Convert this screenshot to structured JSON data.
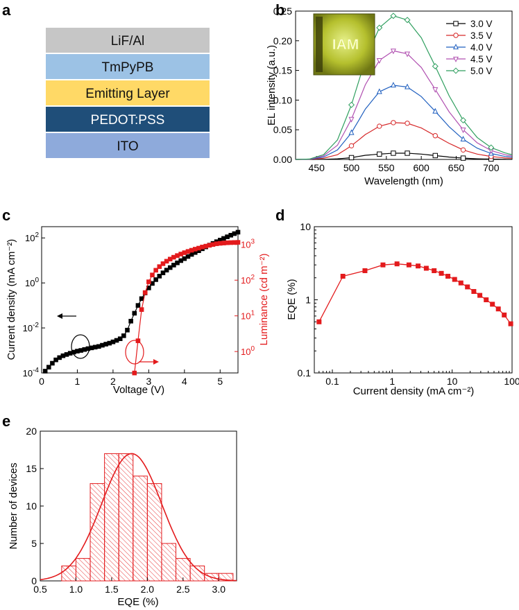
{
  "panel_labels": {
    "a": "a",
    "b": "b",
    "c": "c",
    "d": "d",
    "e": "e"
  },
  "device_stack": {
    "layers": [
      {
        "label": "LiF/Al",
        "color": "#c6c6c6",
        "text_color": "#111111"
      },
      {
        "label": "TmPyPB",
        "color": "#9cc2e5",
        "text_color": "#111111"
      },
      {
        "label": "Emitting Layer",
        "color": "#ffd966",
        "text_color": "#111111"
      },
      {
        "label": "PEDOT:PSS",
        "color": "#1f4e79",
        "text_color": "#ffffff"
      },
      {
        "label": "ITO",
        "color": "#8eaadb",
        "text_color": "#111111"
      }
    ]
  },
  "inset_photo": {
    "text": "IAM"
  },
  "chart_data": [
    {
      "id": "b",
      "type": "line",
      "xlabel": "Wavelength (nm)",
      "ylabel": "EL intensity (a.u.)",
      "xlim": [
        420,
        730
      ],
      "ylim": [
        0,
        0.25
      ],
      "xticks": [
        450,
        500,
        550,
        600,
        650,
        700
      ],
      "yticks": [
        0.0,
        0.05,
        0.1,
        0.15,
        0.2,
        0.25
      ],
      "ytick_labels": [
        "0.00",
        "0.05",
        "0.10",
        "0.15",
        "0.20",
        "0.25"
      ],
      "legend_position": "top-right",
      "x": [
        420,
        440,
        460,
        480,
        500,
        520,
        540,
        560,
        580,
        600,
        620,
        640,
        660,
        680,
        700,
        720,
        730
      ],
      "series": [
        {
          "name": "3.0 V",
          "color": "#000000",
          "marker": "square",
          "values": [
            0.0,
            0.0,
            0.0002,
            0.001,
            0.003,
            0.007,
            0.009,
            0.0105,
            0.0105,
            0.009,
            0.0065,
            0.004,
            0.0022,
            0.001,
            0.0006,
            0.0003,
            0.0002
          ]
        },
        {
          "name": "3.5 V",
          "color": "#d62728",
          "marker": "circle",
          "values": [
            0.0,
            0.0002,
            0.002,
            0.008,
            0.023,
            0.042,
            0.056,
            0.062,
            0.061,
            0.053,
            0.04,
            0.027,
            0.016,
            0.009,
            0.005,
            0.0025,
            0.002
          ]
        },
        {
          "name": "4.0 V",
          "color": "#1f5fbf",
          "marker": "triangle-up",
          "values": [
            0.0,
            0.0003,
            0.004,
            0.016,
            0.045,
            0.085,
            0.114,
            0.125,
            0.122,
            0.106,
            0.081,
            0.055,
            0.034,
            0.019,
            0.01,
            0.005,
            0.004
          ]
        },
        {
          "name": "4.5 V",
          "color": "#b04fb0",
          "marker": "triangle-down",
          "values": [
            0.0,
            0.0005,
            0.006,
            0.024,
            0.068,
            0.126,
            0.167,
            0.183,
            0.178,
            0.155,
            0.118,
            0.08,
            0.05,
            0.028,
            0.015,
            0.008,
            0.006
          ]
        },
        {
          "name": "5.0 V",
          "color": "#2e9e5e",
          "marker": "diamond",
          "values": [
            0.0,
            0.0007,
            0.008,
            0.033,
            0.092,
            0.168,
            0.222,
            0.242,
            0.235,
            0.205,
            0.157,
            0.107,
            0.066,
            0.037,
            0.02,
            0.011,
            0.008
          ]
        }
      ]
    },
    {
      "id": "c",
      "type": "line",
      "xlabel": "Voltage (V)",
      "ylabel": "Current density (mA cm⁻²)",
      "y2label": "Luminance (cd m⁻²)",
      "xlim": [
        0,
        5.5
      ],
      "ylim_log": [
        -4,
        2.5
      ],
      "y2lim_log": [
        -0.6,
        3.5
      ],
      "xticks": [
        0,
        1,
        2,
        3,
        4,
        5
      ],
      "yticks_log": [
        -4,
        -2,
        0,
        2
      ],
      "ytick_labels": [
        "10⁻⁴",
        "10⁻²",
        "10⁰",
        "10²"
      ],
      "y2ticks_log": [
        0,
        1,
        2,
        3
      ],
      "y2tick_labels": [
        "10⁰",
        "10¹",
        "10²",
        "10³"
      ],
      "series": [
        {
          "name": "Current density",
          "axis": "left",
          "color": "#000000",
          "marker": "square",
          "x": [
            0.1,
            0.2,
            0.3,
            0.4,
            0.5,
            0.6,
            0.7,
            0.8,
            0.9,
            1.0,
            1.1,
            1.2,
            1.3,
            1.4,
            1.5,
            1.6,
            1.7,
            1.8,
            1.9,
            2.0,
            2.1,
            2.2,
            2.3,
            2.4,
            2.5,
            2.6,
            2.7,
            2.8,
            2.9,
            3.0,
            3.1,
            3.2,
            3.3,
            3.4,
            3.5,
            3.6,
            3.7,
            3.8,
            3.9,
            4.0,
            4.1,
            4.2,
            4.3,
            4.4,
            4.5,
            4.6,
            4.7,
            4.8,
            4.9,
            5.0,
            5.1,
            5.2,
            5.3,
            5.4,
            5.5
          ],
          "values": [
            0.00012,
            0.00018,
            0.00027,
            0.00038,
            0.00048,
            0.00058,
            0.00066,
            0.00075,
            0.00084,
            0.00093,
            0.001,
            0.0011,
            0.0012,
            0.0013,
            0.0014,
            0.0015,
            0.0017,
            0.0019,
            0.0021,
            0.0024,
            0.0028,
            0.0033,
            0.0045,
            0.008,
            0.02,
            0.045,
            0.1,
            0.2,
            0.36,
            0.6,
            0.95,
            1.4,
            2.0,
            2.8,
            3.7,
            4.8,
            6.2,
            7.8,
            9.8,
            12,
            15,
            18.5,
            22.5,
            27,
            33,
            40,
            48,
            57,
            68,
            80,
            95,
            112,
            132,
            155,
            180
          ]
        },
        {
          "name": "Luminance",
          "axis": "right",
          "color": "#e31a1c",
          "marker": "square",
          "x": [
            2.6,
            2.7,
            2.8,
            2.9,
            3.0,
            3.1,
            3.2,
            3.3,
            3.4,
            3.5,
            3.6,
            3.7,
            3.8,
            3.9,
            4.0,
            4.1,
            4.2,
            4.3,
            4.4,
            4.5,
            4.6,
            4.7,
            4.8,
            4.9,
            5.0,
            5.1,
            5.2,
            5.3,
            5.4,
            5.5
          ],
          "values": [
            0.25,
            2,
            15,
            45,
            90,
            140,
            190,
            240,
            290,
            340,
            390,
            440,
            490,
            540,
            590,
            640,
            690,
            740,
            790,
            850,
            900,
            950,
            1000,
            1050,
            1080,
            1100,
            1120,
            1130,
            1140,
            1150
          ]
        }
      ]
    },
    {
      "id": "d",
      "type": "line",
      "xlabel": "Current density (mA cm⁻²)",
      "ylabel": "EQE (%)",
      "x_scale": "log",
      "y_scale": "log",
      "xlim": [
        0.05,
        100
      ],
      "ylim": [
        0.1,
        10
      ],
      "xticks": [
        0.1,
        1,
        10,
        100
      ],
      "xtick_labels": [
        "0.1",
        "1",
        "10",
        "100"
      ],
      "yticks": [
        0.1,
        1,
        10
      ],
      "ytick_labels": [
        "0.1",
        "1",
        "10"
      ],
      "series": [
        {
          "name": "EQE",
          "color": "#e31a1c",
          "marker": "square",
          "x": [
            0.06,
            0.15,
            0.35,
            0.7,
            1.2,
            1.9,
            2.7,
            3.7,
            5.0,
            6.6,
            8.5,
            11,
            14,
            18,
            23,
            29,
            37,
            47,
            59,
            74,
            95
          ],
          "values": [
            0.5,
            2.1,
            2.5,
            3.0,
            3.1,
            3.0,
            2.9,
            2.7,
            2.5,
            2.3,
            2.1,
            1.9,
            1.7,
            1.5,
            1.3,
            1.15,
            1.0,
            0.87,
            0.75,
            0.62,
            0.47
          ]
        }
      ]
    },
    {
      "id": "e",
      "type": "bar",
      "xlabel": "EQE (%)",
      "ylabel": "Number of devices",
      "xlim": [
        0.5,
        3.25
      ],
      "ylim": [
        0,
        20
      ],
      "xticks": [
        0.5,
        1.0,
        1.5,
        2.0,
        2.5,
        3.0
      ],
      "xtick_labels": [
        "0.5",
        "1.0",
        "1.5",
        "2.0",
        "2.5",
        "3.0"
      ],
      "yticks": [
        0,
        5,
        10,
        15,
        20
      ],
      "bin_width": 0.2,
      "bin_starts": [
        0.8,
        1.0,
        1.2,
        1.4,
        1.6,
        1.8,
        2.0,
        2.2,
        2.4,
        2.6,
        2.8,
        3.0
      ],
      "values": [
        2,
        3,
        13,
        17,
        17,
        14,
        13,
        5,
        3,
        2,
        1,
        1
      ],
      "fit": {
        "type": "gaussian",
        "amplitude": 17,
        "mean": 1.78,
        "sigma": 0.42
      },
      "color": "#e31a1c"
    }
  ]
}
